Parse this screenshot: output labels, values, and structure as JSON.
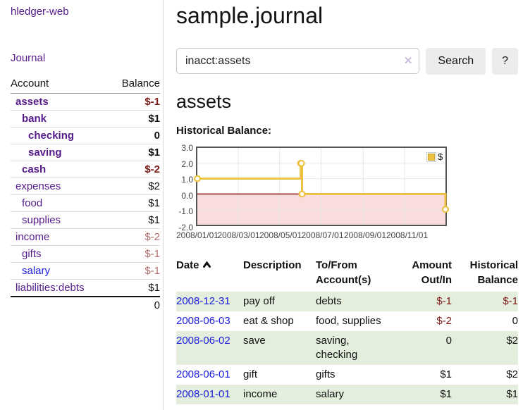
{
  "sidebar": {
    "brand": "hledger-web",
    "journal_link": "Journal",
    "columns": {
      "account": "Account",
      "balance": "Balance"
    },
    "accounts": [
      {
        "name": "assets",
        "balance": "$-1"
      },
      {
        "name": "bank",
        "balance": "$1"
      },
      {
        "name": "checking",
        "balance": "0"
      },
      {
        "name": "saving",
        "balance": "$1"
      },
      {
        "name": "cash",
        "balance": "$-2"
      },
      {
        "name": "expenses",
        "balance": "$2"
      },
      {
        "name": "food",
        "balance": "$1"
      },
      {
        "name": "supplies",
        "balance": "$1"
      },
      {
        "name": "income",
        "balance": "$-2"
      },
      {
        "name": "gifts",
        "balance": "$-1"
      },
      {
        "name": "salary",
        "balance": "$-1"
      },
      {
        "name": "liabilities:debts",
        "balance": "$1"
      }
    ],
    "total": "0"
  },
  "header": {
    "title": "sample.journal"
  },
  "search": {
    "value": "inacct:assets",
    "clear_icon": "✕",
    "search_button": "Search",
    "help_button": "?"
  },
  "account_page": {
    "heading": "assets",
    "chart_title": "Historical Balance:"
  },
  "chart_data": {
    "type": "line",
    "title": "Historical Balance",
    "style": "step-after",
    "legend": [
      {
        "label": "$",
        "color": "#edc240"
      }
    ],
    "legend_position": "top-right",
    "grid": true,
    "xlim": [
      0,
      365
    ],
    "ylim": [
      -2,
      3
    ],
    "yticks": [
      {
        "value": 3,
        "label": "3.0"
      },
      {
        "value": 2,
        "label": "2.0"
      },
      {
        "value": 1,
        "label": "1.0"
      },
      {
        "value": 0,
        "label": "0.0"
      },
      {
        "value": -1,
        "label": "-1.0"
      },
      {
        "value": -2,
        "label": "-2.0"
      }
    ],
    "xticks": [
      {
        "day": 0,
        "label": "2008/01/01"
      },
      {
        "day": 60,
        "label": "2008/03/01"
      },
      {
        "day": 121,
        "label": "2008/05/01"
      },
      {
        "day": 182,
        "label": "2008/07/01"
      },
      {
        "day": 244,
        "label": "2008/09/01"
      },
      {
        "day": 305,
        "label": "2008/11/01"
      }
    ],
    "series": [
      {
        "name": "$",
        "points": [
          {
            "date": "2008-01-01",
            "day": 0,
            "value": 1
          },
          {
            "date": "2008-06-01",
            "day": 152,
            "value": 2
          },
          {
            "date": "2008-06-02",
            "day": 153,
            "value": 2
          },
          {
            "date": "2008-06-03",
            "day": 154,
            "value": 0
          },
          {
            "date": "2008-12-31",
            "day": 365,
            "value": -1
          }
        ]
      }
    ],
    "line_color": "#edc240",
    "marker_fill": "#ffffff",
    "grid_color": "#e6e6e6",
    "border_color": "#545454",
    "zero_line_color": "#8b1a1a",
    "negative_region_color": "#f9dcdc"
  },
  "register": {
    "headers": {
      "date": "Date",
      "description": "Description",
      "accounts": "To/From Account(s)",
      "amount": "Amount Out/In",
      "balance": "Historical Balance"
    },
    "rows": [
      {
        "date": "2008-12-31",
        "description": "pay off",
        "accounts": "debts",
        "amount": "$-1",
        "balance": "$-1"
      },
      {
        "date": "2008-06-03",
        "description": "eat & shop",
        "accounts": "food, supplies",
        "amount": "$-2",
        "balance": "0"
      },
      {
        "date": "2008-06-02",
        "description": "save",
        "accounts": "saving, checking",
        "amount": "0",
        "balance": "$2"
      },
      {
        "date": "2008-06-01",
        "description": "gift",
        "accounts": "gifts",
        "amount": "$1",
        "balance": "$2"
      },
      {
        "date": "2008-01-01",
        "description": "income",
        "accounts": "salary",
        "amount": "$1",
        "balance": "$1"
      }
    ]
  },
  "colors": {
    "link_visited_purple": "#551a8b",
    "link_blue": "#1b1be0",
    "negative_strong": "#801818",
    "negative_soft": "#b26d6d",
    "row_green": "#e3eedd",
    "chart_gold": "#edc240"
  }
}
